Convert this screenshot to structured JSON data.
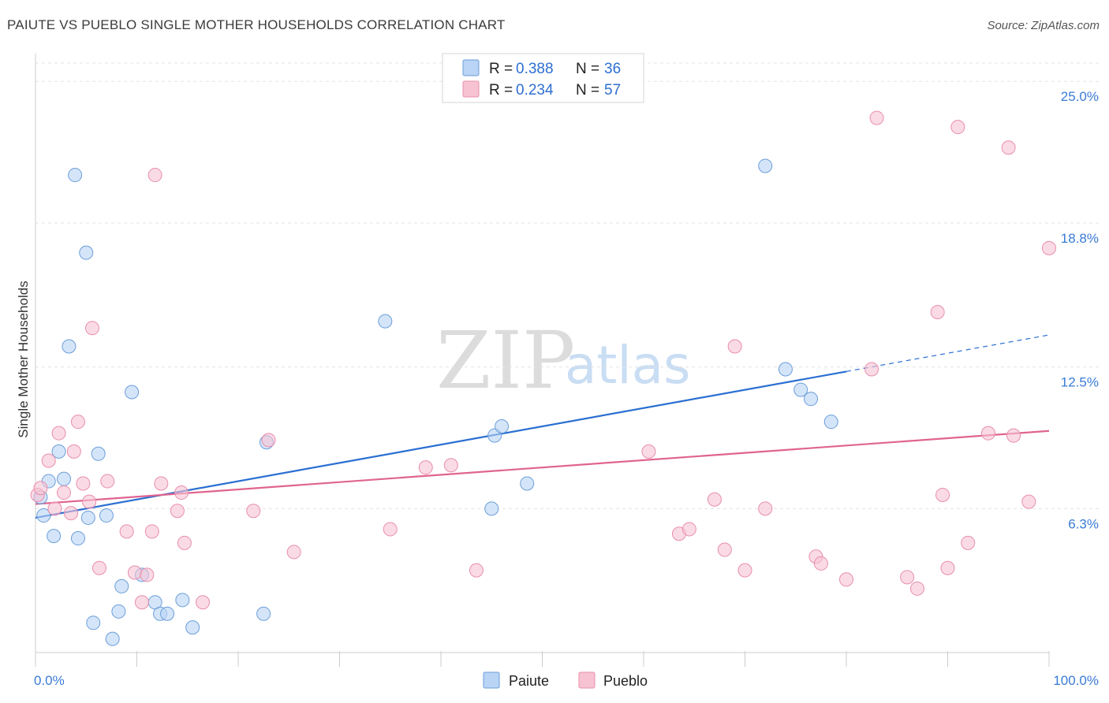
{
  "title": "PAIUTE VS PUEBLO SINGLE MOTHER HOUSEHOLDS CORRELATION CHART",
  "source": "Source: ZipAtlas.com",
  "watermark": {
    "zip": "ZIP",
    "atlas": "atlas"
  },
  "colors": {
    "paiute_fill": "#b9d4f5",
    "paiute_stroke": "#6b9ed9",
    "paiute_line": "#2a6fd1",
    "pueblo_fill": "#f7c3d3",
    "pueblo_stroke": "#e88eac",
    "pueblo_line": "#e0648f",
    "grid": "#e3e3e3",
    "axis_text": "#3a7bd5"
  },
  "legend": {
    "paiute": {
      "r_label": "R = ",
      "r_value": "0.388",
      "n_label": "N = ",
      "n_value": "36"
    },
    "pueblo": {
      "r_label": "R = ",
      "r_value": "0.234",
      "n_label": "N = ",
      "n_value": "57"
    }
  },
  "bottom_legend": {
    "paiute": "Paiute",
    "pueblo": "Pueblo"
  },
  "chart_data": {
    "type": "scatter",
    "title": "PAIUTE VS PUEBLO SINGLE MOTHER HOUSEHOLDS CORRELATION CHART",
    "xlabel": "",
    "ylabel": "Single Mother Households",
    "xlim": [
      0,
      100
    ],
    "ylim": [
      0,
      25.8
    ],
    "x_tick_labels": {
      "min": "0.0%",
      "max": "100.0%"
    },
    "y_ticks": [
      {
        "value": 6.3,
        "label": "6.3%"
      },
      {
        "value": 12.5,
        "label": "12.5%"
      },
      {
        "value": 18.8,
        "label": "18.8%"
      },
      {
        "value": 25.0,
        "label": "25.0%"
      }
    ],
    "series": [
      {
        "name": "Paiute",
        "r": 0.388,
        "n": 36,
        "trend": {
          "x0": 0,
          "y0": 5.9,
          "x1": 80,
          "y1": 12.3,
          "dash_to_x": 100,
          "dash_to_y": 13.9
        },
        "points": [
          [
            0.5,
            6.8
          ],
          [
            0.8,
            6.0
          ],
          [
            1.3,
            7.5
          ],
          [
            1.8,
            5.1
          ],
          [
            2.3,
            8.8
          ],
          [
            2.8,
            7.6
          ],
          [
            3.3,
            13.4
          ],
          [
            3.9,
            20.9
          ],
          [
            4.2,
            5.0
          ],
          [
            5.0,
            17.5
          ],
          [
            5.2,
            5.9
          ],
          [
            5.7,
            1.3
          ],
          [
            6.2,
            8.7
          ],
          [
            7.0,
            6.0
          ],
          [
            7.6,
            0.6
          ],
          [
            8.2,
            1.8
          ],
          [
            8.5,
            2.9
          ],
          [
            9.5,
            11.4
          ],
          [
            10.5,
            3.4
          ],
          [
            11.8,
            2.2
          ],
          [
            12.3,
            1.7
          ],
          [
            13.0,
            1.7
          ],
          [
            14.5,
            2.3
          ],
          [
            15.5,
            1.1
          ],
          [
            22.5,
            1.7
          ],
          [
            22.8,
            9.2
          ],
          [
            34.5,
            14.5
          ],
          [
            45.0,
            6.3
          ],
          [
            45.3,
            9.5
          ],
          [
            46.0,
            9.9
          ],
          [
            48.5,
            7.4
          ],
          [
            72.0,
            21.3
          ],
          [
            74.0,
            12.4
          ],
          [
            75.5,
            11.5
          ],
          [
            76.5,
            11.1
          ],
          [
            78.5,
            10.1
          ]
        ]
      },
      {
        "name": "Pueblo",
        "r": 0.234,
        "n": 57,
        "trend": {
          "x0": 0,
          "y0": 6.5,
          "x1": 100,
          "y1": 9.7
        },
        "points": [
          [
            0.2,
            6.9
          ],
          [
            0.5,
            7.2
          ],
          [
            1.3,
            8.4
          ],
          [
            1.9,
            6.3
          ],
          [
            2.3,
            9.6
          ],
          [
            2.8,
            7.0
          ],
          [
            3.5,
            6.1
          ],
          [
            3.8,
            8.8
          ],
          [
            4.2,
            10.1
          ],
          [
            4.7,
            7.4
          ],
          [
            5.3,
            6.6
          ],
          [
            5.6,
            14.2
          ],
          [
            6.3,
            3.7
          ],
          [
            7.1,
            7.5
          ],
          [
            9.0,
            5.3
          ],
          [
            9.8,
            3.5
          ],
          [
            10.5,
            2.2
          ],
          [
            11.0,
            3.4
          ],
          [
            11.5,
            5.3
          ],
          [
            11.8,
            20.9
          ],
          [
            12.4,
            7.4
          ],
          [
            14.0,
            6.2
          ],
          [
            14.4,
            7.0
          ],
          [
            14.7,
            4.8
          ],
          [
            16.5,
            2.2
          ],
          [
            21.5,
            6.2
          ],
          [
            23.0,
            9.3
          ],
          [
            25.5,
            4.4
          ],
          [
            35.0,
            5.4
          ],
          [
            38.5,
            8.1
          ],
          [
            41.0,
            8.2
          ],
          [
            43.5,
            3.6
          ],
          [
            60.5,
            8.8
          ],
          [
            63.5,
            5.2
          ],
          [
            64.5,
            5.4
          ],
          [
            67.0,
            6.7
          ],
          [
            68.0,
            4.5
          ],
          [
            69.0,
            13.4
          ],
          [
            70.0,
            3.6
          ],
          [
            72.0,
            6.3
          ],
          [
            77.0,
            4.2
          ],
          [
            77.5,
            3.9
          ],
          [
            80.0,
            3.2
          ],
          [
            82.5,
            12.4
          ],
          [
            83.0,
            23.4
          ],
          [
            86.0,
            3.3
          ],
          [
            87.0,
            2.8
          ],
          [
            89.0,
            14.9
          ],
          [
            89.5,
            6.9
          ],
          [
            90.0,
            3.7
          ],
          [
            91.0,
            23.0
          ],
          [
            92.0,
            4.8
          ],
          [
            94.0,
            9.6
          ],
          [
            96.0,
            22.1
          ],
          [
            96.5,
            9.5
          ],
          [
            98.0,
            6.6
          ],
          [
            100.0,
            17.7
          ]
        ]
      }
    ]
  }
}
